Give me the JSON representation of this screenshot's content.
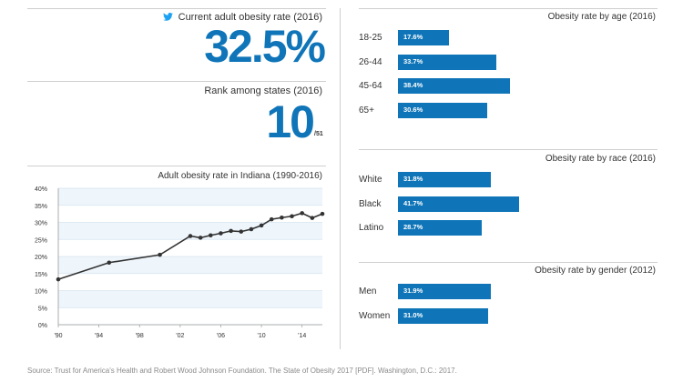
{
  "kpi": {
    "current_label": "Current adult obesity rate (2016)",
    "current_value": "32.5%",
    "rank_label": "Rank among states (2016)",
    "rank_value": "10",
    "rank_of": "/51"
  },
  "icons": {
    "current": "twitter-bird-icon"
  },
  "colors": {
    "accent": "#0f75b8",
    "line": "#333333",
    "band": "#eef5fb"
  },
  "chart_data": [
    {
      "type": "line",
      "title": "Adult obesity rate in Indiana (1990-2016)",
      "x": [
        1990,
        1995,
        2000,
        2003,
        2004,
        2005,
        2006,
        2007,
        2008,
        2009,
        2010,
        2011,
        2012,
        2013,
        2014,
        2015,
        2016
      ],
      "values": [
        13.3,
        18.2,
        20.5,
        26.0,
        25.5,
        26.2,
        26.8,
        27.5,
        27.3,
        28.0,
        29.1,
        30.9,
        31.4,
        31.8,
        32.7,
        31.3,
        32.5
      ],
      "xlim": [
        1990,
        2016
      ],
      "xticks": [
        "'90",
        "'94",
        "'98",
        "'02",
        "'06",
        "'10",
        "'14"
      ],
      "xtick_values": [
        1990,
        1994,
        1998,
        2002,
        2006,
        2010,
        2014
      ],
      "ylim": [
        0,
        40
      ],
      "yticks": [
        "0%",
        "5%",
        "10%",
        "15%",
        "20%",
        "25%",
        "30%",
        "35%",
        "40%"
      ],
      "ytick_values": [
        0,
        5,
        10,
        15,
        20,
        25,
        30,
        35,
        40
      ],
      "grid": true,
      "bands": true
    },
    {
      "type": "bar",
      "title": "Obesity rate by age (2016)",
      "categories": [
        "18-25",
        "26-44",
        "45-64",
        "65+"
      ],
      "values": [
        17.6,
        33.7,
        38.4,
        30.6
      ],
      "labels": [
        "17.6%",
        "33.7%",
        "38.4%",
        "30.6%"
      ]
    },
    {
      "type": "bar",
      "title": "Obesity rate by race (2016)",
      "categories": [
        "White",
        "Black",
        "Latino"
      ],
      "values": [
        31.8,
        41.7,
        28.7
      ],
      "labels": [
        "31.8%",
        "41.7%",
        "28.7%"
      ]
    },
    {
      "type": "bar",
      "title": "Obesity rate by gender (2012)",
      "categories": [
        "Men",
        "Women"
      ],
      "values": [
        31.9,
        31.0
      ],
      "labels": [
        "31.9%",
        "31.0%"
      ]
    }
  ],
  "source": "Source: Trust for America's Health and Robert Wood Johnson Foundation. The State of Obesity 2017 [PDF]. Washington, D.C.: 2017."
}
